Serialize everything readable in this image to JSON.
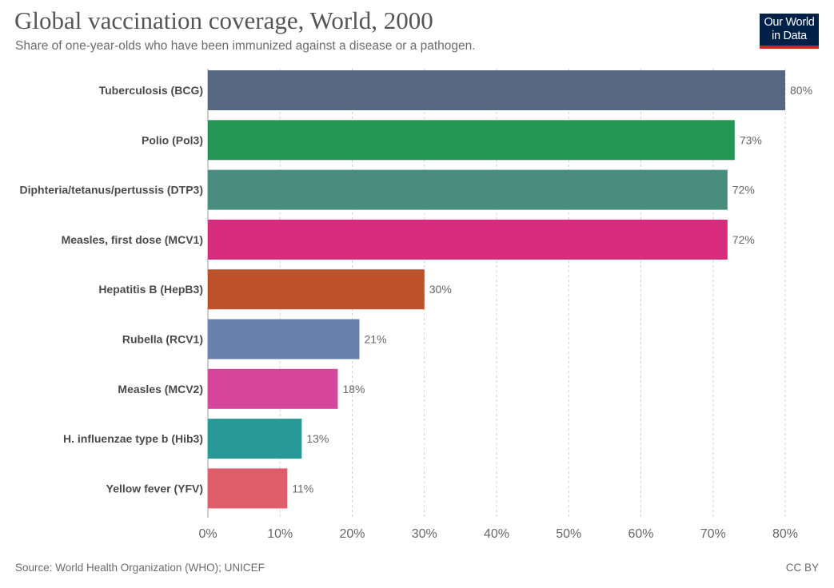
{
  "header": {
    "title": "Global vaccination coverage, World, 2000",
    "subtitle": "Share of one-year-olds who have been immunized against a disease or a pathogen."
  },
  "logo": {
    "line1": "Our World",
    "line2": "in Data",
    "bg_color": "#002147",
    "accent_color": "#ce261e"
  },
  "chart_data": {
    "type": "bar",
    "orientation": "horizontal",
    "title": "Global vaccination coverage, World, 2000",
    "subtitle": "Share of one-year-olds who have been immunized against a disease or a pathogen.",
    "categories": [
      "Tuberculosis (BCG)",
      "Polio (Pol3)",
      "Diphteria/tetanus/pertussis (DTP3)",
      "Measles, first dose (MCV1)",
      "Hepatitis B (HepB3)",
      "Rubella (RCV1)",
      "Measles (MCV2)",
      "H. influenzae type b (Hib3)",
      "Yellow fever (YFV)"
    ],
    "values": [
      80,
      73,
      72,
      72,
      30,
      21,
      18,
      13,
      11
    ],
    "value_labels": [
      "80%",
      "73%",
      "72%",
      "72%",
      "30%",
      "21%",
      "18%",
      "13%",
      "11%"
    ],
    "colors": [
      "#576780",
      "#269655",
      "#4a8c7e",
      "#d72c7b",
      "#bd512b",
      "#6981ad",
      "#d6459a",
      "#289996",
      "#df5c6a"
    ],
    "xlim": [
      0,
      80
    ],
    "xticks": [
      0,
      10,
      20,
      30,
      40,
      50,
      60,
      70,
      80
    ],
    "xtick_labels": [
      "0%",
      "10%",
      "20%",
      "30%",
      "40%",
      "50%",
      "60%",
      "70%",
      "80%"
    ],
    "grid": true,
    "grid_style": "dashed vertical",
    "legend": "none"
  },
  "footer": {
    "source": "Source: World Health Organization (WHO); UNICEF",
    "license": "CC BY"
  }
}
